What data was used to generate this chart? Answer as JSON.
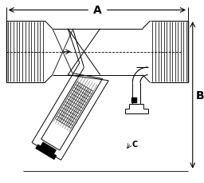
{
  "bg_color": "#ffffff",
  "line_color": "#000000",
  "fig_width": 2.56,
  "fig_height": 2.3,
  "dpi": 100,
  "dim_A": "A",
  "dim_B": "B",
  "dim_C": "C"
}
